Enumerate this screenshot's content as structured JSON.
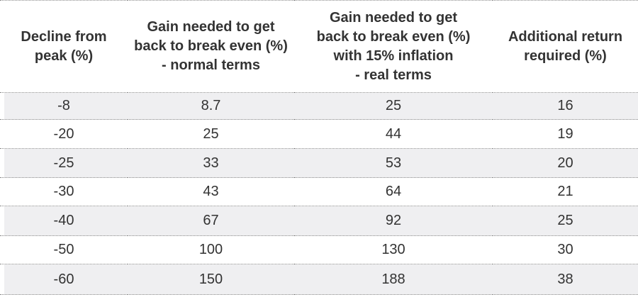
{
  "chart_data": {
    "type": "table",
    "columns": [
      "Decline from\npeak (%)",
      "Gain needed to get\nback to break even (%)\n- normal terms",
      "Gain needed to get\nback to break even (%)\nwith 15% inflation\n- real terms",
      "Additional return\nrequired (%)"
    ],
    "rows": [
      [
        "-8",
        "8.7",
        "25",
        "16"
      ],
      [
        "-20",
        "25",
        "44",
        "19"
      ],
      [
        "-25",
        "33",
        "53",
        "20"
      ],
      [
        "-30",
        "43",
        "64",
        "21"
      ],
      [
        "-40",
        "67",
        "92",
        "25"
      ],
      [
        "-50",
        "100",
        "130",
        "30"
      ],
      [
        "-60",
        "150",
        "188",
        "38"
      ]
    ],
    "shading": "alternating rows shaded light gray, starting with first row"
  },
  "colors": {
    "text": "#333333",
    "shaded_row": "#efeff1",
    "divider": "#8a8a8a"
  }
}
